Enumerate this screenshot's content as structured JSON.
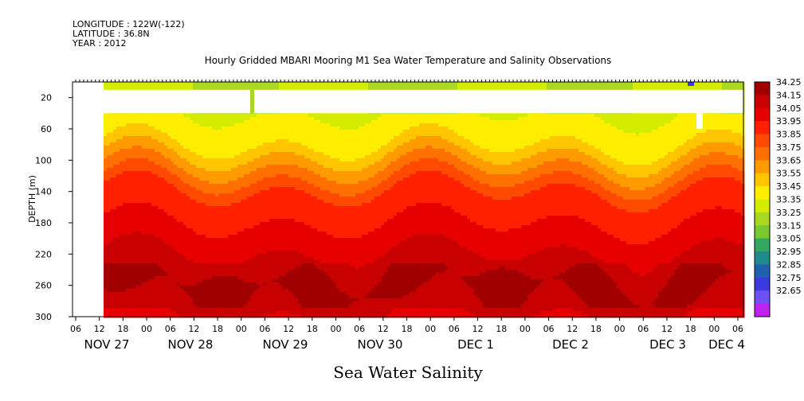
{
  "header": {
    "longitude": "LONGITUDE : 122W(-122)",
    "latitude": "LATITUDE : 36.8N",
    "year": "YEAR : 2012"
  },
  "chart_data": {
    "type": "heatmap",
    "title": "Hourly Gridded MBARI Mooring M1 Sea Water Temperature and Salinity Observations",
    "xlabel": "",
    "ylabel": "DEPTH (m)",
    "bottom_label": "Sea Water Salinity",
    "x_hour_ticks": [
      "06",
      "12",
      "18",
      "00",
      "06",
      "12",
      "18",
      "00",
      "06",
      "12",
      "18",
      "00",
      "06",
      "12",
      "18",
      "00",
      "06",
      "12",
      "18",
      "00",
      "06",
      "12",
      "18",
      "00",
      "06",
      "12",
      "18",
      "00",
      "06"
    ],
    "date_labels": [
      "NOV 27",
      "NOV 28",
      "NOV 29",
      "NOV 30",
      "DEC  1",
      "DEC  2",
      "DEC  3",
      "DEC  4"
    ],
    "y_ticks": [
      20,
      60,
      100,
      140,
      180,
      220,
      260,
      300
    ],
    "ylim": [
      300,
      0
    ],
    "data_start": "NOV 27 12",
    "colorbar_levels": [
      "34.25",
      "34.15",
      "34.05",
      "33.95",
      "33.85",
      "33.75",
      "33.65",
      "33.55",
      "33.45",
      "33.35",
      "33.25",
      "33.15",
      "33.05",
      "32.95",
      "32.85",
      "32.75",
      "32.65"
    ],
    "colorbar_colors": [
      "#a00000",
      "#c80000",
      "#e60000",
      "#ff2000",
      "#ff4a00",
      "#ff7000",
      "#ff9a00",
      "#ffc600",
      "#ffee00",
      "#d4ec00",
      "#a8d820",
      "#78c830",
      "#34a860",
      "#1e8c8c",
      "#2060b0",
      "#3a3ae0",
      "#7050f0",
      "#c020f0"
    ],
    "profile": [
      {
        "depth": 10,
        "salinity": 33.45
      },
      {
        "depth": 40,
        "salinity": 33.45
      },
      {
        "depth": 80,
        "salinity": 33.55
      },
      {
        "depth": 110,
        "salinity": 33.75
      },
      {
        "depth": 140,
        "salinity": 33.95
      },
      {
        "depth": 180,
        "salinity": 34.05
      },
      {
        "depth": 220,
        "salinity": 34.15
      },
      {
        "depth": 260,
        "salinity": 34.25
      },
      {
        "depth": 300,
        "salinity": 34.15
      }
    ]
  }
}
